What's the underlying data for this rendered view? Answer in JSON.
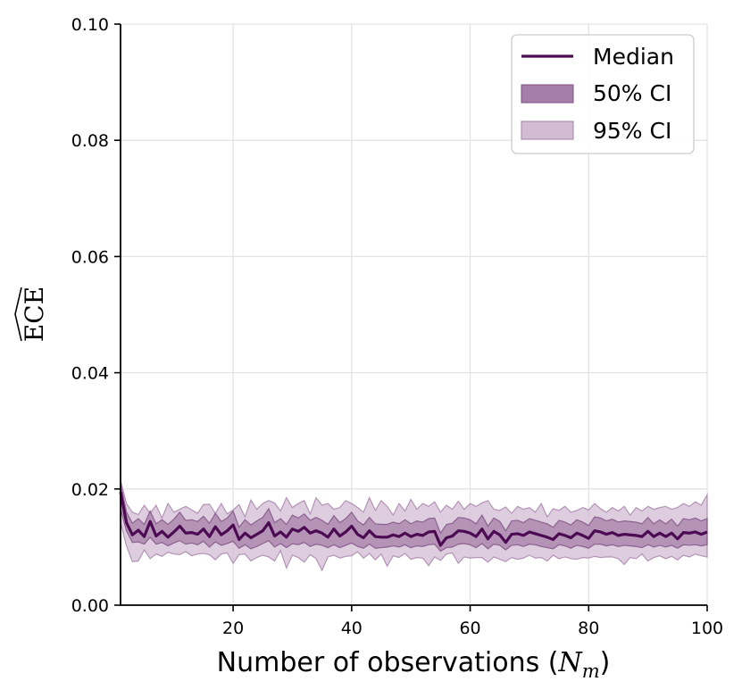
{
  "chart_data": {
    "type": "line",
    "title": "",
    "xlabel": "Number of observations (",
    "xlabel_math": "N",
    "xlabel_math_sub": "m",
    "xlabel_close": ")",
    "ylabel": "ECE",
    "xlim": [
      1,
      100
    ],
    "ylim": [
      0,
      0.1
    ],
    "xticks": [
      20,
      40,
      60,
      80,
      100
    ],
    "xtick_labels": [
      "20",
      "40",
      "60",
      "80",
      "100"
    ],
    "yticks": [
      0.0,
      0.02,
      0.04,
      0.06,
      0.08,
      0.1
    ],
    "ytick_labels": [
      "0.00",
      "0.02",
      "0.04",
      "0.06",
      "0.08",
      "0.10"
    ],
    "grid": true,
    "legend_position": "top-right",
    "colors": {
      "median": "#4b0a52",
      "ci50": "#a57fa8",
      "ci95": "#d2bcd4",
      "grid": "#e3e3e3"
    },
    "series": [
      {
        "name": "Median",
        "kind": "line",
        "x": [
          1,
          2,
          3,
          4,
          5,
          6,
          7,
          8,
          9,
          10,
          11,
          12,
          13,
          14,
          15,
          16,
          17,
          18,
          19,
          20,
          21,
          22,
          23,
          24,
          25,
          26,
          27,
          28,
          29,
          30,
          31,
          32,
          33,
          34,
          35,
          36,
          37,
          38,
          39,
          40,
          41,
          42,
          43,
          44,
          45,
          46,
          47,
          48,
          49,
          50,
          51,
          52,
          53,
          54,
          55,
          56,
          57,
          58,
          59,
          60,
          61,
          62,
          63,
          64,
          65,
          66,
          67,
          68,
          69,
          70,
          71,
          72,
          73,
          74,
          75,
          76,
          77,
          78,
          79,
          80,
          81,
          82,
          83,
          84,
          85,
          86,
          87,
          88,
          89,
          90,
          91,
          92,
          93,
          94,
          95,
          96,
          97,
          98,
          99,
          100
        ],
        "values": [
          0.0195,
          0.0142,
          0.0121,
          0.0129,
          0.0118,
          0.0144,
          0.0119,
          0.0127,
          0.0117,
          0.0126,
          0.0136,
          0.0124,
          0.0125,
          0.0122,
          0.0131,
          0.0118,
          0.0135,
          0.0121,
          0.0128,
          0.0138,
          0.0113,
          0.0124,
          0.0116,
          0.0122,
          0.0128,
          0.0142,
          0.0119,
          0.0126,
          0.0117,
          0.0131,
          0.0127,
          0.0134,
          0.0124,
          0.0128,
          0.0124,
          0.0117,
          0.0131,
          0.0119,
          0.0126,
          0.0136,
          0.0122,
          0.0116,
          0.0128,
          0.0118,
          0.0117,
          0.0117,
          0.0121,
          0.0118,
          0.0124,
          0.0118,
          0.0122,
          0.012,
          0.0126,
          0.0127,
          0.0103,
          0.0116,
          0.0119,
          0.0128,
          0.0127,
          0.0124,
          0.0118,
          0.0131,
          0.0114,
          0.0127,
          0.0121,
          0.0108,
          0.0122,
          0.0123,
          0.012,
          0.0126,
          0.0123,
          0.012,
          0.0117,
          0.0113,
          0.0123,
          0.012,
          0.0116,
          0.0124,
          0.012,
          0.0115,
          0.0128,
          0.0126,
          0.0122,
          0.0125,
          0.012,
          0.0122,
          0.0121,
          0.012,
          0.0118,
          0.0127,
          0.0118,
          0.0124,
          0.0118,
          0.0124,
          0.0114,
          0.0125,
          0.0124,
          0.0126,
          0.0122,
          0.0126
        ]
      },
      {
        "name": "50% CI",
        "kind": "band",
        "lower": [
          0.0165,
          0.0128,
          0.0108,
          0.0109,
          0.0105,
          0.0117,
          0.0105,
          0.0108,
          0.0102,
          0.0107,
          0.0111,
          0.0105,
          0.0107,
          0.0104,
          0.011,
          0.01,
          0.0109,
          0.0103,
          0.0106,
          0.011,
          0.0098,
          0.0104,
          0.0097,
          0.0101,
          0.0106,
          0.0111,
          0.01,
          0.0106,
          0.0099,
          0.0106,
          0.0104,
          0.0108,
          0.0101,
          0.0105,
          0.0103,
          0.0099,
          0.0104,
          0.0099,
          0.0103,
          0.0107,
          0.0101,
          0.0098,
          0.0105,
          0.0098,
          0.0099,
          0.01,
          0.0102,
          0.01,
          0.0104,
          0.0099,
          0.0102,
          0.0101,
          0.0104,
          0.0105,
          0.0093,
          0.0099,
          0.01,
          0.0105,
          0.0106,
          0.0104,
          0.0099,
          0.0106,
          0.0097,
          0.0105,
          0.0103,
          0.0095,
          0.0103,
          0.0104,
          0.0101,
          0.0105,
          0.0104,
          0.0101,
          0.0099,
          0.0097,
          0.0104,
          0.0102,
          0.0098,
          0.0103,
          0.0101,
          0.0098,
          0.0105,
          0.0105,
          0.0102,
          0.0104,
          0.0101,
          0.0103,
          0.0102,
          0.0101,
          0.0099,
          0.0104,
          0.01,
          0.0103,
          0.01,
          0.0103,
          0.0098,
          0.0104,
          0.0103,
          0.0104,
          0.0102,
          0.0104
        ],
        "upper": [
          0.021,
          0.016,
          0.0141,
          0.0149,
          0.0139,
          0.0162,
          0.014,
          0.0147,
          0.0139,
          0.0148,
          0.016,
          0.0146,
          0.0147,
          0.0144,
          0.0153,
          0.0141,
          0.0158,
          0.0144,
          0.015,
          0.0162,
          0.0134,
          0.0147,
          0.0138,
          0.0145,
          0.0151,
          0.0166,
          0.0142,
          0.0149,
          0.0139,
          0.0155,
          0.015,
          0.0157,
          0.0146,
          0.0151,
          0.0146,
          0.0139,
          0.0154,
          0.0142,
          0.0149,
          0.016,
          0.0145,
          0.0138,
          0.0151,
          0.014,
          0.0139,
          0.0139,
          0.0143,
          0.014,
          0.0147,
          0.014,
          0.0145,
          0.0143,
          0.0149,
          0.015,
          0.0124,
          0.0139,
          0.0141,
          0.0151,
          0.015,
          0.0147,
          0.014,
          0.0155,
          0.0136,
          0.015,
          0.0144,
          0.0128,
          0.0145,
          0.0146,
          0.0142,
          0.0149,
          0.0146,
          0.0143,
          0.014,
          0.0134,
          0.0146,
          0.0143,
          0.0138,
          0.0147,
          0.0143,
          0.0137,
          0.0152,
          0.015,
          0.0145,
          0.0148,
          0.0143,
          0.0145,
          0.0144,
          0.0143,
          0.014,
          0.0151,
          0.014,
          0.0147,
          0.014,
          0.0148,
          0.0136,
          0.0149,
          0.0147,
          0.015,
          0.0145,
          0.0149
        ]
      },
      {
        "name": "95% CI",
        "kind": "band",
        "lower": [
          0.0142,
          0.0102,
          0.0075,
          0.0076,
          0.0095,
          0.008,
          0.0088,
          0.0084,
          0.0091,
          0.0088,
          0.0087,
          0.0092,
          0.0085,
          0.0088,
          0.0089,
          0.0087,
          0.0078,
          0.0088,
          0.009,
          0.0072,
          0.0087,
          0.0088,
          0.0076,
          0.0082,
          0.0086,
          0.0083,
          0.0076,
          0.0094,
          0.0064,
          0.0086,
          0.0082,
          0.0074,
          0.0087,
          0.008,
          0.006,
          0.0083,
          0.0086,
          0.0081,
          0.0084,
          0.0085,
          0.0092,
          0.0081,
          0.0089,
          0.0078,
          0.0088,
          0.0067,
          0.0085,
          0.0082,
          0.0089,
          0.0079,
          0.0082,
          0.0081,
          0.0068,
          0.0083,
          0.0077,
          0.0088,
          0.009,
          0.0072,
          0.0083,
          0.0081,
          0.0082,
          0.0082,
          0.0074,
          0.0083,
          0.0079,
          0.0075,
          0.0082,
          0.0079,
          0.0081,
          0.0086,
          0.0081,
          0.0082,
          0.0076,
          0.0086,
          0.008,
          0.0083,
          0.008,
          0.0079,
          0.0082,
          0.0081,
          0.0084,
          0.0082,
          0.0083,
          0.0083,
          0.008,
          0.007,
          0.0082,
          0.008,
          0.0088,
          0.0076,
          0.0082,
          0.0085,
          0.008,
          0.0084,
          0.0078,
          0.0086,
          0.0083,
          0.0088,
          0.0085,
          0.0083
        ],
        "upper": [
          0.0215,
          0.0175,
          0.016,
          0.0156,
          0.0172,
          0.0158,
          0.0172,
          0.015,
          0.0175,
          0.016,
          0.0165,
          0.017,
          0.0164,
          0.0158,
          0.0173,
          0.0174,
          0.0158,
          0.0175,
          0.0157,
          0.0164,
          0.0173,
          0.0152,
          0.0181,
          0.0165,
          0.0175,
          0.018,
          0.0176,
          0.0162,
          0.0185,
          0.0168,
          0.0175,
          0.018,
          0.0157,
          0.0185,
          0.0172,
          0.0175,
          0.0165,
          0.0168,
          0.018,
          0.0175,
          0.0168,
          0.016,
          0.0185,
          0.0163,
          0.018,
          0.017,
          0.0155,
          0.0175,
          0.0162,
          0.0182,
          0.0165,
          0.0175,
          0.017,
          0.0178,
          0.016,
          0.0172,
          0.0165,
          0.0179,
          0.0165,
          0.0175,
          0.017,
          0.0176,
          0.018,
          0.0165,
          0.0163,
          0.0169,
          0.0158,
          0.017,
          0.0165,
          0.0168,
          0.016,
          0.0175,
          0.0152,
          0.0166,
          0.0163,
          0.017,
          0.016,
          0.0163,
          0.0168,
          0.0164,
          0.0175,
          0.0166,
          0.016,
          0.0168,
          0.0162,
          0.017,
          0.0155,
          0.0168,
          0.0162,
          0.017,
          0.0165,
          0.0168,
          0.017,
          0.0165,
          0.0168,
          0.0175,
          0.017,
          0.0178,
          0.0172,
          0.019
        ]
      }
    ]
  }
}
